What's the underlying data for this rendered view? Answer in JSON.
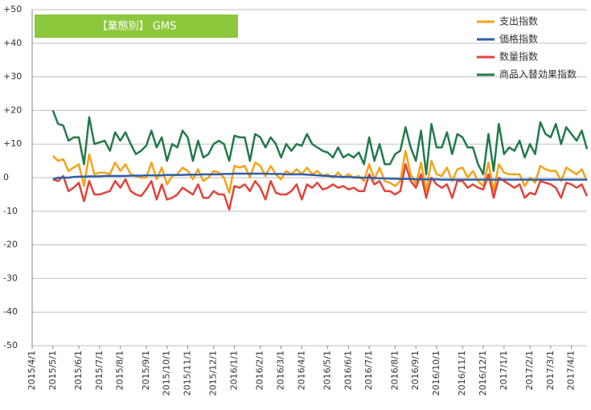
{
  "chart_data": {
    "type": "line",
    "title": "【業態別】 GMS",
    "categories": [
      "2015/4/1",
      null,
      null,
      null,
      "2015/5/1",
      null,
      null,
      null,
      null,
      "2015/6/1",
      null,
      null,
      null,
      "2015/7/1",
      null,
      null,
      null,
      "2015/8/1",
      null,
      null,
      null,
      null,
      "2015/9/1",
      null,
      null,
      null,
      "2015/10/1",
      null,
      null,
      null,
      "2015/11/1",
      null,
      null,
      null,
      null,
      "2015/12/1",
      null,
      null,
      null,
      "2016/1/1",
      null,
      null,
      null,
      null,
      "2016/2/1",
      null,
      null,
      null,
      "2016/3/1",
      null,
      null,
      null,
      "2016/4/1",
      null,
      null,
      null,
      null,
      "2016/5/1",
      null,
      null,
      null,
      "2016/6/1",
      null,
      null,
      null,
      "2016/7/1",
      null,
      null,
      null,
      null,
      "2016/8/1",
      null,
      null,
      null,
      "2016/9/1",
      null,
      null,
      null,
      "2016/10/1",
      null,
      null,
      null,
      null,
      "2016/11/1",
      null,
      null,
      null,
      "2016/12/1",
      null,
      null,
      null,
      "2017/1/1",
      null,
      null,
      null,
      null,
      "2017/2/1",
      null,
      null,
      null,
      "2017/3/1",
      null,
      null,
      null,
      "2017/4/1",
      null,
      null,
      null
    ],
    "series": [
      {
        "name": "支出指数",
        "color": "#f5a31a",
        "values": [
          null,
          null,
          null,
          null,
          6.5,
          5,
          5.5,
          2,
          3,
          4,
          -2.5,
          7,
          1,
          1.5,
          1.5,
          1,
          4.5,
          2,
          4,
          1,
          0.5,
          0,
          0,
          4.5,
          -0.5,
          3,
          -2,
          0.5,
          1,
          3,
          2,
          -0.5,
          2.5,
          -1,
          0,
          2,
          1.5,
          0,
          -4.5,
          3.5,
          3,
          3.5,
          0,
          4.5,
          3.5,
          0.5,
          3.5,
          1,
          -0.5,
          2,
          1,
          2.5,
          1,
          3,
          1,
          2,
          0.5,
          1,
          0,
          1.5,
          0,
          1,
          0,
          0.5,
          -1,
          4,
          -0.5,
          3,
          -1,
          -1.5,
          -2.5,
          -1,
          8,
          1,
          -2,
          4.5,
          -4,
          5,
          1,
          0.5,
          3,
          -1,
          2.5,
          3,
          0,
          2,
          -1,
          -2.5,
          4.5,
          -4,
          4,
          1.5,
          1,
          1,
          1,
          -2.5,
          0,
          -1.5,
          3.5,
          2.5,
          2,
          2,
          -1,
          3,
          2,
          1,
          2.5,
          -1
        ]
      },
      {
        "name": "価格指数",
        "color": "#2f5fa7",
        "values": [
          null,
          null,
          null,
          null,
          -0.5,
          0,
          0,
          0,
          0.2,
          0.3,
          0.3,
          0.4,
          0.4,
          0.4,
          0.5,
          0.5,
          0.5,
          0.5,
          0.5,
          0.6,
          0.6,
          0.6,
          0.7,
          0.7,
          0.7,
          0.7,
          0.8,
          0.8,
          0.8,
          0.8,
          0.9,
          0.9,
          0.9,
          1,
          1,
          1,
          1,
          1.1,
          1.1,
          1.2,
          1.2,
          1.2,
          1.2,
          1.2,
          1.2,
          1.2,
          1.1,
          1.1,
          1.1,
          1,
          1,
          1,
          1,
          0.9,
          0.8,
          0.7,
          0.6,
          0.5,
          0.4,
          0.3,
          0.2,
          0.2,
          0.1,
          0,
          0,
          0,
          -0.1,
          -0.2,
          -0.2,
          -0.3,
          -0.3,
          -0.4,
          -0.4,
          -0.4,
          -0.5,
          -0.5,
          -0.5,
          -0.5,
          -0.5,
          -0.6,
          -0.6,
          -0.6,
          -0.6,
          -0.6,
          -0.6,
          -0.6,
          -0.6,
          -0.6,
          -0.6,
          -0.6,
          -0.6,
          -0.6,
          -0.6,
          -0.6,
          -0.6,
          -0.6,
          -0.6,
          -0.6,
          -0.6,
          -0.6,
          -0.6,
          -0.6,
          -0.6,
          -0.6,
          -0.6,
          -0.6,
          -0.6,
          -0.6
        ]
      },
      {
        "name": "数量指数",
        "color": "#e2433b",
        "values": [
          null,
          null,
          null,
          null,
          -0.5,
          -1,
          0.5,
          -4,
          -3,
          -1.5,
          -7,
          -1,
          -5,
          -5,
          -4.5,
          -4,
          -1,
          -3,
          -0.5,
          -4,
          -5,
          -5.5,
          -3.5,
          -1,
          -6.5,
          -2,
          -6.5,
          -6,
          -5,
          -3,
          -4,
          -5,
          -2,
          -6,
          -6,
          -4,
          -5,
          -5,
          -9.5,
          -2.5,
          -3,
          -2,
          -4,
          -1,
          -3,
          -6.5,
          -1,
          -4.5,
          -5,
          -5,
          -4,
          -2,
          -6.5,
          -2,
          -3,
          -1.5,
          -3.5,
          -3,
          -2,
          -3,
          -2.5,
          -3.5,
          -3,
          -4,
          -4,
          1,
          -2,
          -1,
          -4,
          -4,
          -5,
          -4,
          4,
          -1,
          -3,
          1,
          -6,
          0,
          -2,
          -3,
          -2,
          -6,
          -1,
          -1,
          -3,
          -2,
          -3,
          -3.5,
          1,
          -6,
          0,
          -1,
          -2,
          -3,
          -2,
          -6,
          -4.5,
          -5,
          -1,
          -1.5,
          -2,
          -3,
          -6,
          -1.5,
          -2,
          -3,
          -2,
          -5.5
        ]
      },
      {
        "name": "商品入替効果指数",
        "color": "#227a4b",
        "values": [
          null,
          null,
          null,
          null,
          20,
          16,
          15.5,
          11,
          12,
          12,
          4,
          18,
          10,
          10.5,
          11,
          8,
          13.5,
          11,
          13.5,
          10,
          7,
          8,
          9.5,
          14,
          9,
          12,
          5,
          10,
          9,
          14,
          12,
          5,
          11,
          6,
          7,
          10,
          11,
          10,
          5,
          12.5,
          12,
          12,
          5,
          13,
          12,
          9,
          12,
          10,
          6,
          10,
          8,
          10,
          9.5,
          13,
          10,
          9,
          8,
          7.5,
          6,
          9,
          6,
          7,
          6,
          7.5,
          4,
          12,
          5,
          10,
          4,
          4,
          7,
          8,
          15,
          9,
          5,
          14,
          1,
          16,
          9,
          9,
          13.5,
          7,
          13,
          12,
          9,
          9,
          4,
          1,
          13,
          2,
          16,
          7,
          9,
          8,
          11,
          6,
          10,
          7,
          16.5,
          13,
          12,
          16,
          10,
          15,
          13,
          11,
          14,
          8.5
        ]
      }
    ],
    "ylim": [
      -50,
      50
    ],
    "yticks": [
      -50,
      -40,
      -30,
      -20,
      -10,
      0,
      {
        "value": 10,
        "label": "+10"
      },
      {
        "value": 20,
        "label": "+20"
      },
      {
        "value": 30,
        "label": "+30"
      },
      {
        "value": 40,
        "label": "+40"
      },
      {
        "value": 50,
        "label": "+50"
      }
    ],
    "grid": true,
    "legend": "top-right"
  }
}
